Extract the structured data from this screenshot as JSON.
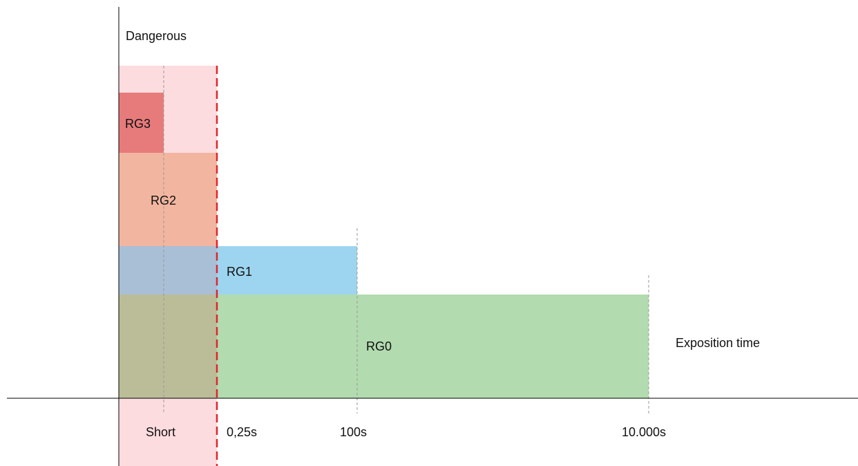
{
  "labels": {
    "y_axis": "Dangerous",
    "x_axis": "Exposition time",
    "short": "Short"
  },
  "risk_groups": [
    {
      "name": "RG3",
      "color": "#e77b7b"
    },
    {
      "name": "RG2",
      "color": "#f2b5a0"
    },
    {
      "name": "RG1",
      "color": "#9dd5f0"
    },
    {
      "name": "RG0",
      "color": "#b2dbaf"
    }
  ],
  "time_ticks": [
    "0,25s",
    "100s",
    "10.000s"
  ],
  "colors": {
    "danger_zone": "#fcdcdf",
    "overlap_rg1": "#a9bfd6",
    "overlap_rg0": "#bbbd98",
    "threshold_line": "#e0242b",
    "axis": "#000000",
    "guide": "#999999"
  }
}
